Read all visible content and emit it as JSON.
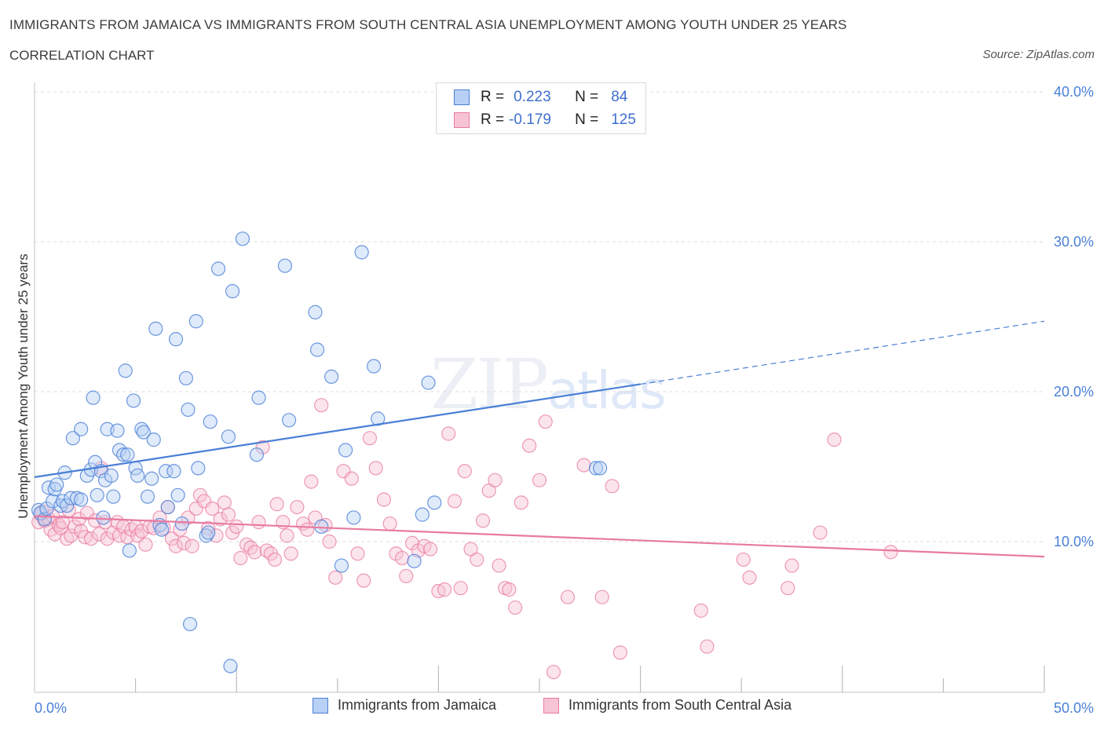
{
  "header": {
    "title": "IMMIGRANTS FROM JAMAICA VS IMMIGRANTS FROM SOUTH CENTRAL ASIA UNEMPLOYMENT AMONG YOUTH UNDER 25 YEARS",
    "subtitle": "CORRELATION CHART",
    "source": "Source: ZipAtlas.com"
  },
  "watermark": {
    "zip": "ZIP",
    "atlas": "atlas"
  },
  "legend": {
    "rows": [
      {
        "r_label": "R =",
        "r_value": "0.223",
        "n_label": "N =",
        "n_value": "84"
      },
      {
        "r_label": "R =",
        "r_value": "-0.179",
        "n_label": "N =",
        "n_value": "125"
      }
    ]
  },
  "bottom_legend": {
    "series1": "Immigrants from Jamaica",
    "series2": "Immigrants from South Central Asia"
  },
  "colors": {
    "blue": "#4a7fd6",
    "blue_fill": "#b8d0f5",
    "pink": "#e87aa0",
    "pink_fill": "#f7c4d5",
    "grid": "#dcdcdc",
    "axis_text": "#4a7fd6"
  },
  "chart_data": {
    "type": "scatter",
    "title": "IMMIGRANTS FROM JAMAICA VS IMMIGRANTS FROM SOUTH CENTRAL ASIA UNEMPLOYMENT AMONG YOUTH UNDER 25 YEARS",
    "xlabel": "",
    "ylabel": "Unemployment Among Youth under 25 years",
    "xlim": [
      0,
      50
    ],
    "ylim": [
      0,
      40
    ],
    "x_ticks": [
      "0.0%",
      "50.0%"
    ],
    "y_ticks": [
      {
        "value": 10,
        "label": "10.0%"
      },
      {
        "value": 20,
        "label": "20.0%"
      },
      {
        "value": 30,
        "label": "30.0%"
      },
      {
        "value": 40,
        "label": "40.0%"
      }
    ],
    "grid": true,
    "legend_position": "top-center",
    "series": [
      {
        "name": "Immigrants from Jamaica",
        "color": "#4a7fd6",
        "trend": {
          "x0": 0,
          "y0": 14.3,
          "x1": 30,
          "y1": 20.5,
          "dash_to_x": 50,
          "dash_to_y": 24.7
        },
        "points": [
          [
            0.2,
            12.1
          ],
          [
            0.3,
            11.9
          ],
          [
            0.5,
            11.5
          ],
          [
            0.6,
            12.2
          ],
          [
            0.7,
            13.6
          ],
          [
            0.9,
            12.7
          ],
          [
            1.0,
            13.5
          ],
          [
            1.1,
            13.8
          ],
          [
            1.3,
            12.4
          ],
          [
            1.4,
            12.7
          ],
          [
            1.5,
            14.6
          ],
          [
            1.6,
            12.4
          ],
          [
            1.8,
            12.9
          ],
          [
            1.9,
            16.9
          ],
          [
            2.1,
            12.9
          ],
          [
            2.3,
            12.8
          ],
          [
            2.3,
            17.5
          ],
          [
            2.6,
            14.4
          ],
          [
            2.8,
            14.8
          ],
          [
            2.9,
            19.6
          ],
          [
            3.0,
            15.3
          ],
          [
            3.1,
            13.1
          ],
          [
            3.3,
            14.7
          ],
          [
            3.4,
            11.6
          ],
          [
            3.5,
            14.1
          ],
          [
            3.6,
            17.5
          ],
          [
            3.8,
            14.4
          ],
          [
            3.9,
            13.0
          ],
          [
            4.1,
            17.4
          ],
          [
            4.2,
            16.1
          ],
          [
            4.4,
            15.8
          ],
          [
            4.5,
            21.4
          ],
          [
            4.6,
            15.8
          ],
          [
            4.7,
            9.4
          ],
          [
            4.9,
            19.4
          ],
          [
            5.0,
            14.9
          ],
          [
            5.1,
            14.4
          ],
          [
            5.3,
            17.5
          ],
          [
            5.4,
            17.3
          ],
          [
            5.6,
            13.0
          ],
          [
            5.8,
            14.2
          ],
          [
            5.9,
            16.8
          ],
          [
            6.0,
            24.2
          ],
          [
            6.2,
            11.1
          ],
          [
            6.3,
            10.8
          ],
          [
            6.5,
            14.7
          ],
          [
            6.6,
            12.3
          ],
          [
            6.9,
            14.7
          ],
          [
            7.0,
            23.5
          ],
          [
            7.1,
            13.1
          ],
          [
            7.3,
            11.2
          ],
          [
            7.5,
            20.9
          ],
          [
            7.6,
            18.8
          ],
          [
            7.7,
            4.5
          ],
          [
            8.0,
            24.7
          ],
          [
            8.1,
            14.9
          ],
          [
            8.5,
            10.4
          ],
          [
            8.6,
            10.6
          ],
          [
            8.7,
            18.0
          ],
          [
            9.1,
            28.2
          ],
          [
            9.6,
            17.0
          ],
          [
            9.7,
            1.7
          ],
          [
            9.8,
            26.7
          ],
          [
            10.3,
            30.2
          ],
          [
            11.0,
            15.8
          ],
          [
            11.1,
            19.6
          ],
          [
            12.4,
            28.4
          ],
          [
            12.6,
            18.1
          ],
          [
            13.9,
            25.3
          ],
          [
            14.0,
            22.8
          ],
          [
            14.2,
            11.0
          ],
          [
            14.7,
            21.0
          ],
          [
            15.2,
            8.4
          ],
          [
            15.4,
            16.1
          ],
          [
            15.8,
            11.6
          ],
          [
            16.2,
            29.3
          ],
          [
            16.8,
            21.7
          ],
          [
            17.0,
            18.2
          ],
          [
            18.8,
            8.7
          ],
          [
            19.2,
            11.8
          ],
          [
            19.5,
            20.6
          ],
          [
            19.8,
            12.6
          ],
          [
            27.8,
            14.9
          ],
          [
            28.0,
            14.9
          ]
        ]
      },
      {
        "name": "Immigrants from South Central Asia",
        "color": "#e87aa0",
        "trend": {
          "x0": 0,
          "y0": 11.7,
          "x1": 50,
          "y1": 9.0
        },
        "points": [
          [
            0.2,
            11.3
          ],
          [
            0.3,
            11.8
          ],
          [
            0.4,
            12.0
          ],
          [
            0.5,
            11.4
          ],
          [
            0.7,
            11.5
          ],
          [
            0.8,
            10.8
          ],
          [
            0.9,
            11.7
          ],
          [
            1.0,
            10.5
          ],
          [
            1.2,
            11.1
          ],
          [
            1.3,
            10.9
          ],
          [
            1.4,
            11.3
          ],
          [
            1.6,
            10.2
          ],
          [
            1.7,
            12.1
          ],
          [
            1.8,
            10.4
          ],
          [
            2.0,
            11.0
          ],
          [
            2.2,
            11.5
          ],
          [
            2.3,
            10.7
          ],
          [
            2.5,
            10.3
          ],
          [
            2.6,
            11.9
          ],
          [
            2.8,
            10.2
          ],
          [
            3.0,
            11.4
          ],
          [
            3.2,
            10.5
          ],
          [
            3.3,
            14.9
          ],
          [
            3.5,
            11.3
          ],
          [
            3.6,
            10.2
          ],
          [
            3.9,
            10.6
          ],
          [
            4.1,
            11.3
          ],
          [
            4.2,
            10.4
          ],
          [
            4.4,
            11.0
          ],
          [
            4.6,
            10.3
          ],
          [
            4.8,
            10.8
          ],
          [
            5.0,
            11.0
          ],
          [
            5.1,
            10.4
          ],
          [
            5.3,
            10.7
          ],
          [
            5.5,
            9.8
          ],
          [
            5.7,
            11.0
          ],
          [
            5.9,
            10.9
          ],
          [
            6.2,
            11.6
          ],
          [
            6.4,
            10.9
          ],
          [
            6.6,
            12.3
          ],
          [
            6.8,
            10.2
          ],
          [
            7.0,
            9.7
          ],
          [
            7.2,
            10.8
          ],
          [
            7.4,
            9.9
          ],
          [
            7.6,
            11.6
          ],
          [
            7.8,
            9.7
          ],
          [
            8.0,
            12.2
          ],
          [
            8.2,
            13.1
          ],
          [
            8.4,
            12.7
          ],
          [
            8.6,
            10.9
          ],
          [
            8.8,
            12.2
          ],
          [
            9.0,
            10.4
          ],
          [
            9.2,
            11.5
          ],
          [
            9.4,
            12.6
          ],
          [
            9.6,
            11.8
          ],
          [
            9.8,
            10.6
          ],
          [
            10.0,
            11.0
          ],
          [
            10.2,
            8.9
          ],
          [
            10.5,
            9.8
          ],
          [
            10.7,
            9.6
          ],
          [
            10.9,
            9.3
          ],
          [
            11.1,
            11.3
          ],
          [
            11.3,
            16.3
          ],
          [
            11.5,
            9.4
          ],
          [
            11.7,
            9.2
          ],
          [
            11.9,
            8.8
          ],
          [
            12.0,
            12.5
          ],
          [
            12.3,
            11.3
          ],
          [
            12.5,
            10.4
          ],
          [
            12.7,
            9.2
          ],
          [
            13.0,
            12.3
          ],
          [
            13.3,
            11.2
          ],
          [
            13.5,
            10.8
          ],
          [
            13.7,
            14.0
          ],
          [
            13.9,
            11.6
          ],
          [
            14.2,
            19.1
          ],
          [
            14.4,
            11.1
          ],
          [
            14.6,
            10.0
          ],
          [
            14.9,
            7.6
          ],
          [
            15.3,
            14.7
          ],
          [
            15.7,
            14.2
          ],
          [
            16.0,
            9.2
          ],
          [
            16.3,
            7.4
          ],
          [
            16.6,
            16.9
          ],
          [
            16.9,
            14.9
          ],
          [
            17.3,
            12.8
          ],
          [
            17.6,
            11.2
          ],
          [
            17.9,
            9.2
          ],
          [
            18.2,
            8.9
          ],
          [
            18.4,
            7.7
          ],
          [
            18.7,
            9.9
          ],
          [
            19.0,
            9.4
          ],
          [
            19.3,
            9.7
          ],
          [
            19.6,
            9.5
          ],
          [
            20.0,
            6.7
          ],
          [
            20.3,
            6.8
          ],
          [
            20.5,
            17.2
          ],
          [
            20.8,
            12.7
          ],
          [
            21.1,
            6.9
          ],
          [
            21.3,
            14.7
          ],
          [
            21.6,
            9.5
          ],
          [
            21.9,
            8.8
          ],
          [
            22.2,
            11.4
          ],
          [
            22.5,
            13.4
          ],
          [
            22.8,
            14.1
          ],
          [
            23.0,
            8.4
          ],
          [
            23.3,
            6.9
          ],
          [
            23.5,
            6.8
          ],
          [
            23.8,
            5.6
          ],
          [
            24.1,
            12.6
          ],
          [
            24.5,
            16.4
          ],
          [
            25.0,
            14.1
          ],
          [
            25.3,
            18.0
          ],
          [
            25.7,
            1.3
          ],
          [
            26.4,
            6.3
          ],
          [
            27.2,
            15.1
          ],
          [
            28.1,
            6.3
          ],
          [
            28.6,
            13.7
          ],
          [
            29.0,
            2.6
          ],
          [
            33.0,
            5.4
          ],
          [
            33.3,
            3.0
          ],
          [
            35.1,
            8.8
          ],
          [
            35.4,
            7.6
          ],
          [
            37.3,
            6.9
          ],
          [
            37.5,
            8.4
          ],
          [
            38.9,
            10.6
          ],
          [
            39.6,
            16.8
          ],
          [
            42.4,
            9.3
          ]
        ]
      }
    ]
  }
}
